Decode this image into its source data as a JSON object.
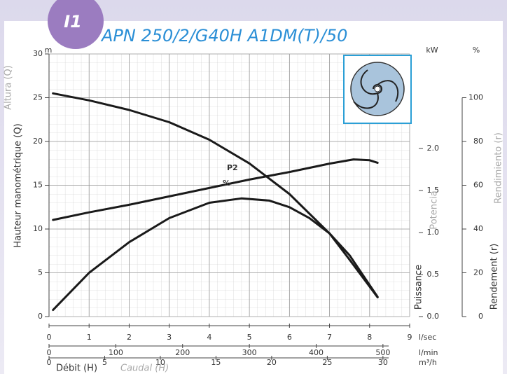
{
  "chart_data": {
    "type": "line",
    "badge": "I1",
    "title": "APN 250/2/G40H A1DM(T)/50",
    "x_label": "Débit (H)",
    "x_label_alt": "Caudal (H)",
    "y_label": "Hauteur manométrique (Q)",
    "y_label_alt": "Altura (Q)",
    "y_unit": "m",
    "y2_label": "Puissance",
    "y2_label_alt": "Potencia",
    "y2_unit": "kW",
    "y3_label": "Rendement (r)",
    "y3_label_alt": "Rendimiento (r)",
    "y3_unit": "%",
    "x_unit": "l/sec",
    "xlim": [
      0,
      9
    ],
    "xticks": [
      0,
      1,
      2,
      3,
      4,
      5,
      6,
      7,
      8,
      9
    ],
    "x2_unit": "l/min",
    "x2lim": [
      0,
      540
    ],
    "x2ticks": [
      0,
      100,
      200,
      300,
      400,
      500
    ],
    "x3_unit": "m³/h",
    "x3lim": [
      0,
      32.4
    ],
    "x3ticks": [
      0,
      5,
      10,
      15,
      20,
      25,
      30
    ],
    "ylim": [
      0,
      30
    ],
    "yticks": [
      0,
      5,
      10,
      15,
      20,
      25,
      30
    ],
    "y2lim": [
      0,
      3.125
    ],
    "y2ticks": [
      {
        "value": 0,
        "label": "0.0"
      },
      {
        "value": 0.5,
        "label": "0.5"
      },
      {
        "value": 1,
        "label": "1.0"
      },
      {
        "value": 1.5,
        "label": "1.5"
      },
      {
        "value": 2,
        "label": "2.0"
      }
    ],
    "y3lim": [
      0,
      120
    ],
    "y3ticks": [
      0,
      20,
      40,
      60,
      80,
      100
    ],
    "grid": true,
    "series": [
      {
        "color": "#1a1a1a",
        "x": [
          0.1,
          1,
          2,
          3,
          4,
          5,
          6,
          7,
          7.5,
          8.2
        ],
        "values": [
          25.5,
          24.7,
          23.6,
          22.2,
          20.2,
          17.5,
          14.0,
          9.5,
          6.5,
          2.2
        ]
      },
      {
        "name": "P2",
        "axis": "y2",
        "color": "#1a1a1a",
        "x": [
          0.1,
          1,
          2,
          3,
          4,
          5,
          6,
          7,
          7.6,
          8,
          8.2
        ],
        "values": [
          1.15,
          1.24,
          1.33,
          1.43,
          1.53,
          1.63,
          1.72,
          1.82,
          1.87,
          1.86,
          1.83
        ]
      },
      {
        "name": "%",
        "axis": "y3",
        "color": "#1a1a1a",
        "x": [
          0.1,
          1,
          2,
          3,
          4,
          4.8,
          5.5,
          6,
          6.5,
          7,
          7.5,
          8.2
        ],
        "values": [
          3,
          20,
          34,
          45,
          52,
          54,
          53,
          50,
          45,
          38,
          28,
          9
        ]
      }
    ]
  }
}
